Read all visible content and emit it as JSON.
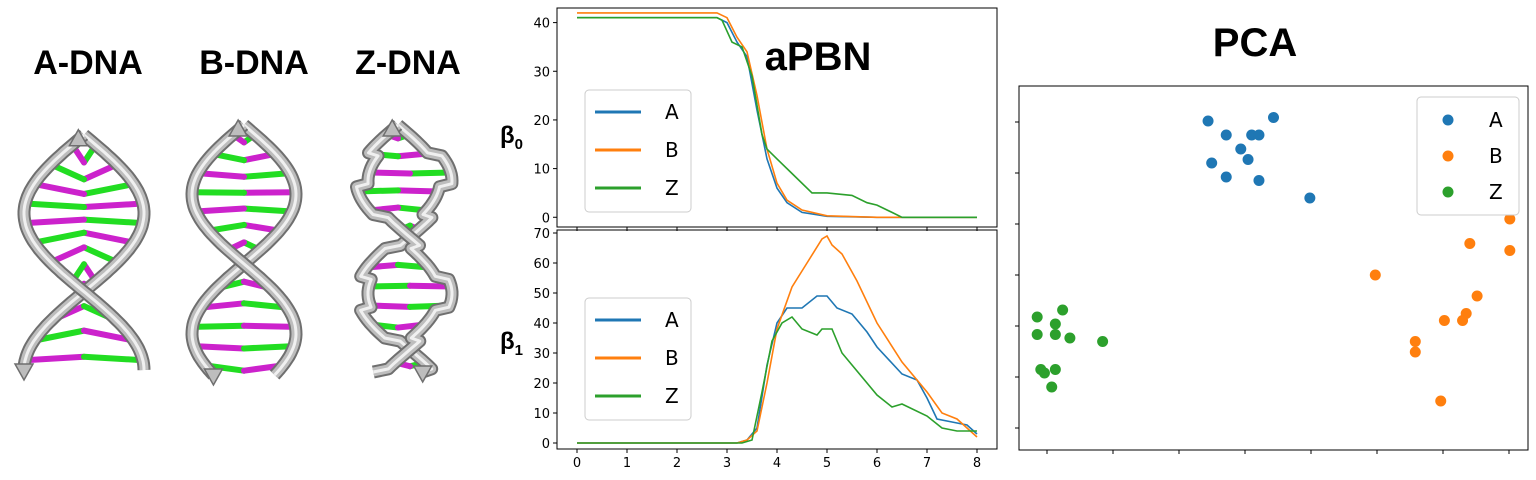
{
  "molecules": {
    "a_title": "A-DNA",
    "b_title": "B-DNA",
    "z_title": "Z-DNA",
    "backbone_color": "#bdbdbd",
    "base_colors": [
      "#22dd22",
      "#cc22cc"
    ]
  },
  "colors": {
    "A": "#1f77b4",
    "B": "#ff7f0e",
    "Z": "#2ca02c"
  },
  "chart_data": [
    {
      "type": "line",
      "title": "aPBN",
      "ylabel": "β",
      "ylabel_sub": "0",
      "xlim": [
        -0.4,
        8.4
      ],
      "ylim": [
        -2,
        43
      ],
      "yticks": [
        0,
        10,
        20,
        30,
        40
      ],
      "legend": "center-left",
      "series": [
        {
          "name": "A",
          "color": "#1f77b4",
          "x": [
            0,
            2.8,
            3.0,
            3.2,
            3.4,
            3.6,
            3.8,
            4.0,
            4.2,
            4.5,
            5.0,
            6.0,
            8.0
          ],
          "y": [
            41,
            41,
            40,
            36,
            33,
            22,
            12,
            6,
            3,
            1,
            0.2,
            0,
            0
          ]
        },
        {
          "name": "B",
          "color": "#ff7f0e",
          "x": [
            0,
            2.8,
            3.0,
            3.2,
            3.4,
            3.6,
            3.8,
            4.0,
            4.2,
            4.5,
            5.0,
            6.0,
            8.0
          ],
          "y": [
            42,
            42,
            41,
            37,
            34,
            25,
            14,
            7,
            3.5,
            1.5,
            0.3,
            0,
            0
          ]
        },
        {
          "name": "Z",
          "color": "#2ca02c",
          "x": [
            0,
            2.8,
            2.9,
            3.1,
            3.3,
            3.5,
            3.7,
            3.8,
            4.0,
            4.3,
            4.7,
            5.0,
            5.5,
            5.8,
            6.0,
            6.3,
            6.5,
            8.0
          ],
          "y": [
            41,
            41,
            40.5,
            36,
            35,
            29,
            17,
            14,
            12,
            9,
            5,
            5,
            4.5,
            3,
            2.5,
            1,
            0,
            0
          ]
        }
      ]
    },
    {
      "type": "line",
      "title": "",
      "ylabel": "β",
      "ylabel_sub": "1",
      "xlim": [
        -0.4,
        8.4
      ],
      "ylim": [
        -2,
        71
      ],
      "xticks": [
        0,
        1,
        2,
        3,
        4,
        5,
        6,
        7,
        8
      ],
      "yticks": [
        0,
        10,
        20,
        30,
        40,
        50,
        60,
        70
      ],
      "legend": "center-left",
      "series": [
        {
          "name": "A",
          "color": "#1f77b4",
          "x": [
            0,
            3.2,
            3.4,
            3.6,
            3.8,
            4.0,
            4.2,
            4.5,
            4.8,
            5.0,
            5.2,
            5.5,
            5.8,
            6.0,
            6.5,
            6.8,
            7.0,
            7.2,
            7.5,
            7.8,
            8.0
          ],
          "y": [
            0,
            0,
            1,
            5,
            26,
            40,
            45,
            45,
            49,
            49,
            45,
            43,
            37,
            32,
            23,
            21,
            15,
            8,
            7,
            6,
            3
          ]
        },
        {
          "name": "B",
          "color": "#ff7f0e",
          "x": [
            0,
            3.2,
            3.4,
            3.6,
            3.8,
            4.0,
            4.3,
            4.6,
            4.9,
            5.0,
            5.1,
            5.3,
            5.6,
            6.0,
            6.5,
            7.0,
            7.3,
            7.6,
            8.0
          ],
          "y": [
            0,
            0,
            1,
            4,
            20,
            38,
            52,
            60,
            68,
            69,
            66,
            63,
            54,
            40,
            27,
            17,
            10,
            8,
            2
          ]
        },
        {
          "name": "Z",
          "color": "#2ca02c",
          "x": [
            0,
            3.3,
            3.5,
            3.7,
            3.9,
            4.1,
            4.3,
            4.5,
            4.8,
            4.9,
            5.1,
            5.3,
            5.5,
            5.8,
            6.0,
            6.3,
            6.5,
            7.0,
            7.3,
            7.6,
            8.0
          ],
          "y": [
            0,
            0,
            1,
            17,
            34,
            40,
            42,
            38,
            36,
            38,
            38,
            30,
            26,
            20,
            16,
            12,
            13,
            9,
            5,
            4,
            4
          ]
        }
      ]
    },
    {
      "type": "scatter",
      "title": "PCA",
      "xlim": [
        -0.35,
        1.05
      ],
      "ylim": [
        -0.02,
        1.02
      ],
      "legend": "top-right",
      "series": [
        {
          "name": "A",
          "color": "#1f77b4",
          "x": [
            0.17,
            0.29,
            0.35,
            0.22,
            0.18,
            0.28,
            0.22,
            0.31,
            0.31,
            0.26,
            0.45
          ],
          "y": [
            0.92,
            0.88,
            0.93,
            0.88,
            0.8,
            0.81,
            0.76,
            0.88,
            0.75,
            0.84,
            0.7
          ]
        },
        {
          "name": "B",
          "color": "#ff7f0e",
          "x": [
            1.0,
            0.89,
            0.91,
            0.88,
            0.87,
            1.0,
            0.63,
            0.82,
            0.74,
            0.74,
            0.81
          ],
          "y": [
            0.64,
            0.57,
            0.42,
            0.37,
            0.35,
            0.55,
            0.48,
            0.35,
            0.29,
            0.26,
            0.12
          ]
        },
        {
          "name": "Z",
          "color": "#2ca02c",
          "x": [
            -0.3,
            -0.23,
            -0.25,
            -0.3,
            -0.25,
            -0.21,
            -0.12,
            -0.28,
            -0.29,
            -0.25,
            -0.26
          ],
          "y": [
            0.36,
            0.38,
            0.34,
            0.31,
            0.31,
            0.3,
            0.29,
            0.2,
            0.21,
            0.21,
            0.16
          ]
        }
      ]
    }
  ]
}
